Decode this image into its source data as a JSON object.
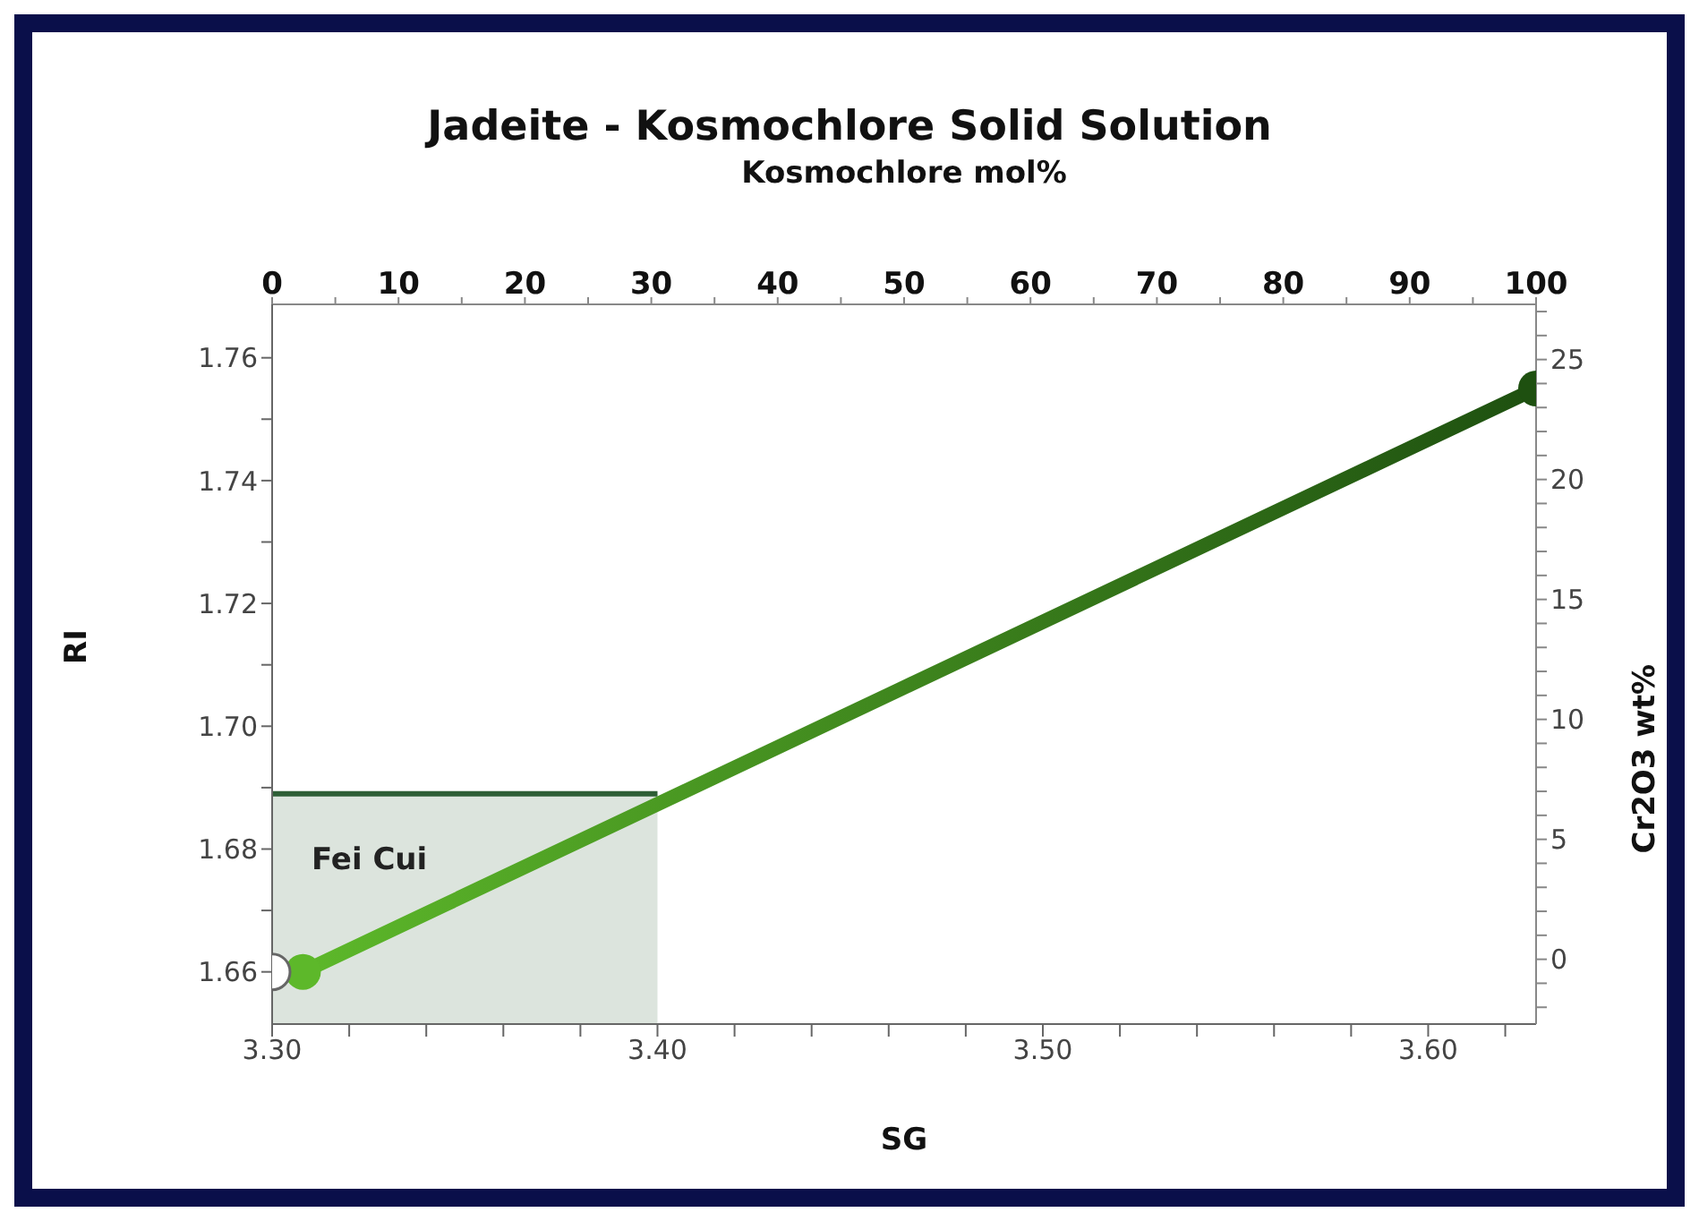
{
  "chart_data": {
    "type": "line",
    "title": "Jadeite - Kosmochlore Solid Solution",
    "xlabel": "SG",
    "ylabel": "RI",
    "x2label": "Kosmochlore mol%",
    "y2label": "Cr2O3 wt%",
    "xlim": [
      3.3,
      3.628
    ],
    "ylim": [
      1.6515,
      1.7687
    ],
    "x2lim": [
      0,
      100
    ],
    "y2lim": [
      -2.7,
      27.3
    ],
    "xticks": [
      {
        "value": 3.3,
        "label": "3.30"
      },
      {
        "value": 3.32,
        "label": null
      },
      {
        "value": 3.34,
        "label": null
      },
      {
        "value": 3.36,
        "label": null
      },
      {
        "value": 3.38,
        "label": null
      },
      {
        "value": 3.4,
        "label": "3.40"
      },
      {
        "value": 3.42,
        "label": null
      },
      {
        "value": 3.44,
        "label": null
      },
      {
        "value": 3.46,
        "label": null
      },
      {
        "value": 3.48,
        "label": null
      },
      {
        "value": 3.5,
        "label": "3.50"
      },
      {
        "value": 3.52,
        "label": null
      },
      {
        "value": 3.54,
        "label": null
      },
      {
        "value": 3.56,
        "label": null
      },
      {
        "value": 3.58,
        "label": null
      },
      {
        "value": 3.6,
        "label": "3.60"
      },
      {
        "value": 3.62,
        "label": null
      }
    ],
    "yticks": [
      {
        "value": 1.66,
        "label": "1.66"
      },
      {
        "value": 1.67,
        "label": null
      },
      {
        "value": 1.68,
        "label": "1.68"
      },
      {
        "value": 1.69,
        "label": null
      },
      {
        "value": 1.7,
        "label": "1.70"
      },
      {
        "value": 1.71,
        "label": null
      },
      {
        "value": 1.72,
        "label": "1.72"
      },
      {
        "value": 1.73,
        "label": null
      },
      {
        "value": 1.74,
        "label": "1.74"
      },
      {
        "value": 1.75,
        "label": null
      },
      {
        "value": 1.76,
        "label": "1.76"
      }
    ],
    "x2ticks": [
      0,
      {
        "value": 5,
        "label": null
      },
      10,
      {
        "value": 15,
        "label": null
      },
      20,
      {
        "value": 25,
        "label": null
      },
      30,
      {
        "value": 35,
        "label": null
      },
      40,
      {
        "value": 45,
        "label": null
      },
      50,
      {
        "value": 55,
        "label": null
      },
      60,
      {
        "value": 65,
        "label": null
      },
      70,
      {
        "value": 75,
        "label": null
      },
      80,
      {
        "value": 85,
        "label": null
      },
      90,
      {
        "value": 95,
        "label": null
      },
      100
    ],
    "y2ticks": [
      {
        "value": -2,
        "label": null
      },
      {
        "value": -1,
        "label": null
      },
      0,
      {
        "value": 1,
        "label": null
      },
      {
        "value": 2,
        "label": null
      },
      {
        "value": 3,
        "label": null
      },
      {
        "value": 4,
        "label": null
      },
      5,
      {
        "value": 6,
        "label": null
      },
      {
        "value": 7,
        "label": null
      },
      {
        "value": 8,
        "label": null
      },
      {
        "value": 9,
        "label": null
      },
      10,
      {
        "value": 11,
        "label": null
      },
      {
        "value": 12,
        "label": null
      },
      {
        "value": 13,
        "label": null
      },
      {
        "value": 14,
        "label": null
      },
      15,
      {
        "value": 16,
        "label": null
      },
      {
        "value": 17,
        "label": null
      },
      {
        "value": 18,
        "label": null
      },
      {
        "value": 19,
        "label": null
      },
      20,
      {
        "value": 21,
        "label": null
      },
      {
        "value": 22,
        "label": null
      },
      {
        "value": 23,
        "label": null
      },
      {
        "value": 24,
        "label": null
      },
      25,
      {
        "value": 26,
        "label": null
      },
      {
        "value": 27,
        "label": null
      }
    ],
    "line_style": "solid",
    "series": [
      {
        "type": "area",
        "name": "Fei Cui",
        "color": "#2e5e36",
        "x": [
          3.3,
          3.4
        ],
        "values": [
          1.689,
          1.689
        ]
      },
      {
        "marker": "circle",
        "colors": [
          "#5db82a",
          "#1e5010"
        ],
        "x": [
          3.308,
          3.628
        ],
        "values": [
          1.66,
          1.755
        ]
      },
      {
        "type": "scatter",
        "marker": "circle",
        "color": "#ffffff",
        "x": [
          3.3
        ],
        "values": [
          1.66
        ]
      }
    ]
  }
}
